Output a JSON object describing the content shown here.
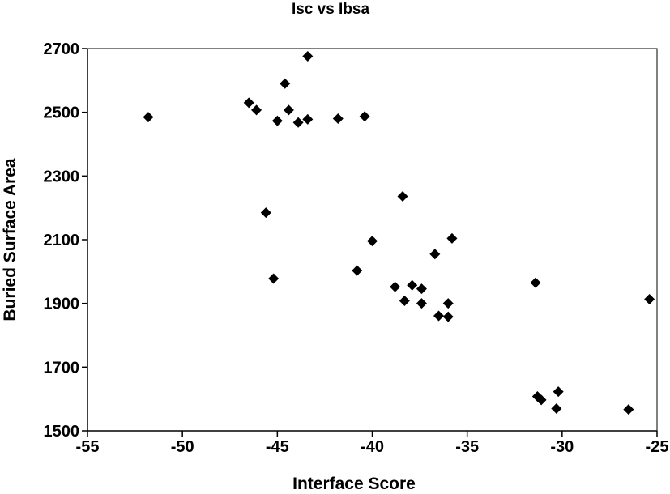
{
  "chart_data": {
    "type": "scatter",
    "title": "Isc vs Ibsa",
    "xlabel": "Interface Score",
    "ylabel": "Buried Surface Area",
    "xlim": [
      -55,
      -25
    ],
    "ylim": [
      1500,
      2700
    ],
    "xticks": [
      -55,
      -50,
      -45,
      -40,
      -35,
      -30,
      -25
    ],
    "yticks": [
      1500,
      1700,
      1900,
      2100,
      2300,
      2500,
      2700
    ],
    "xtick_labels": [
      "-55",
      "-50",
      "-45",
      "-40",
      "-35",
      "-30",
      "-25"
    ],
    "ytick_labels": [
      "1500",
      "1700",
      "1900",
      "2100",
      "2300",
      "2500",
      "2700"
    ],
    "grid": false,
    "legend": "none",
    "marker": "diamond",
    "marker_color": "#000000",
    "points": [
      {
        "x": -51.8,
        "y": 2485
      },
      {
        "x": -46.5,
        "y": 2530
      },
      {
        "x": -46.1,
        "y": 2507
      },
      {
        "x": -45.6,
        "y": 2185
      },
      {
        "x": -45.2,
        "y": 1978
      },
      {
        "x": -45.0,
        "y": 2473
      },
      {
        "x": -44.6,
        "y": 2590
      },
      {
        "x": -44.4,
        "y": 2507
      },
      {
        "x": -43.9,
        "y": 2468
      },
      {
        "x": -43.4,
        "y": 2676
      },
      {
        "x": -43.4,
        "y": 2478
      },
      {
        "x": -41.8,
        "y": 2480
      },
      {
        "x": -40.8,
        "y": 2003
      },
      {
        "x": -40.4,
        "y": 2487
      },
      {
        "x": -40.0,
        "y": 2096
      },
      {
        "x": -38.8,
        "y": 1952
      },
      {
        "x": -38.4,
        "y": 2236
      },
      {
        "x": -38.3,
        "y": 1908
      },
      {
        "x": -37.9,
        "y": 1957
      },
      {
        "x": -37.4,
        "y": 1946
      },
      {
        "x": -37.4,
        "y": 1900
      },
      {
        "x": -36.7,
        "y": 2055
      },
      {
        "x": -36.5,
        "y": 1861
      },
      {
        "x": -36.0,
        "y": 1900
      },
      {
        "x": -36.0,
        "y": 1858
      },
      {
        "x": -35.8,
        "y": 2104
      },
      {
        "x": -31.4,
        "y": 1965
      },
      {
        "x": -31.3,
        "y": 1608
      },
      {
        "x": -31.1,
        "y": 1597
      },
      {
        "x": -30.3,
        "y": 1570
      },
      {
        "x": -30.2,
        "y": 1623
      },
      {
        "x": -26.5,
        "y": 1567
      },
      {
        "x": -25.4,
        "y": 1913
      }
    ]
  }
}
